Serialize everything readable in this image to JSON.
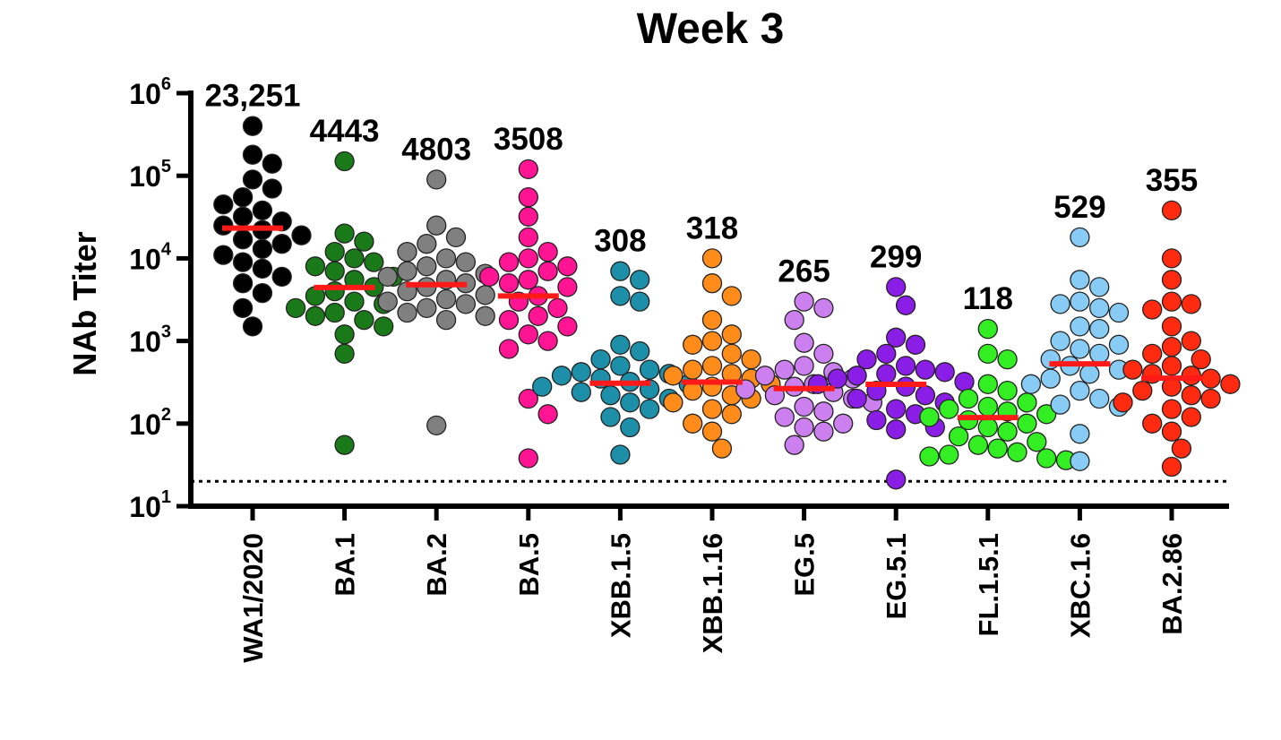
{
  "chart_data": {
    "type": "scatter",
    "title": "Week 3",
    "xlabel": "",
    "ylabel": "NAb Titer",
    "yscale": "log",
    "ylim": [
      10,
      1000000
    ],
    "yticks": [
      {
        "base": "10",
        "exp": "1"
      },
      {
        "base": "10",
        "exp": "2"
      },
      {
        "base": "10",
        "exp": "3"
      },
      {
        "base": "10",
        "exp": "4"
      },
      {
        "base": "10",
        "exp": "5"
      },
      {
        "base": "10",
        "exp": "6"
      }
    ],
    "limit_of_detection": 20,
    "categories": [
      "WA1/2020",
      "BA.1",
      "BA.2",
      "BA.5",
      "XBB.1.5",
      "XBB.1.16",
      "EG.5",
      "EG.5.1",
      "FL.1.5.1",
      "XBC.1.6",
      "BA.2.86"
    ],
    "series": [
      {
        "name": "WA1/2020",
        "color": "#000000",
        "gmt": 23251,
        "gmt_label": "23,251",
        "values": [
          400000,
          180000,
          140000,
          90000,
          70000,
          55000,
          45000,
          38000,
          32000,
          28000,
          25000,
          22000,
          19000,
          17000,
          15000,
          13000,
          11000,
          9000,
          7500,
          6000,
          5000,
          3800,
          2500,
          1500
        ]
      },
      {
        "name": "BA.1",
        "color": "#1a7a1a",
        "gmt": 4443,
        "gmt_label": "4443",
        "values": [
          150000,
          20000,
          16000,
          12000,
          10000,
          9000,
          8000,
          7000,
          6000,
          5500,
          4500,
          4000,
          3500,
          3000,
          2800,
          2500,
          2200,
          2000,
          1800,
          1500,
          1200,
          700,
          55
        ]
      },
      {
        "name": "BA.2",
        "color": "#808080",
        "gmt": 4803,
        "gmt_label": "4803",
        "values": [
          90000,
          25000,
          18000,
          15000,
          12000,
          10000,
          9000,
          8000,
          7000,
          6500,
          6000,
          5500,
          5000,
          4500,
          4000,
          3600,
          3200,
          3000,
          2800,
          2500,
          2200,
          2000,
          1800,
          95
        ]
      },
      {
        "name": "BA.5",
        "color": "#ff1493",
        "gmt": 3508,
        "gmt_label": "3508",
        "values": [
          120000,
          55000,
          32000,
          18000,
          12000,
          10000,
          9000,
          8000,
          7000,
          6000,
          5500,
          5000,
          4500,
          3500,
          3000,
          2500,
          2000,
          1800,
          1500,
          1200,
          1000,
          800,
          200,
          130,
          38
        ]
      },
      {
        "name": "XBB.1.5",
        "color": "#1e8fa8",
        "gmt": 308,
        "gmt_label": "308",
        "values": [
          7000,
          5500,
          3500,
          3000,
          900,
          750,
          600,
          500,
          450,
          420,
          400,
          380,
          350,
          320,
          300,
          280,
          260,
          240,
          220,
          200,
          180,
          150,
          120,
          90,
          42
        ]
      },
      {
        "name": "XBB.1.16",
        "color": "#ff8c1a",
        "gmt": 318,
        "gmt_label": "318",
        "values": [
          10000,
          5000,
          3500,
          1800,
          1200,
          1000,
          900,
          700,
          600,
          500,
          450,
          400,
          380,
          350,
          300,
          280,
          250,
          220,
          200,
          180,
          150,
          130,
          100,
          80,
          50
        ]
      },
      {
        "name": "EG.5",
        "color": "#cc80f0",
        "gmt": 265,
        "gmt_label": "265",
        "values": [
          3000,
          2500,
          1800,
          950,
          700,
          500,
          450,
          420,
          380,
          350,
          300,
          280,
          260,
          240,
          220,
          200,
          180,
          160,
          140,
          120,
          100,
          90,
          80,
          55
        ]
      },
      {
        "name": "EG.5.1",
        "color": "#8a1ee6",
        "gmt": 299,
        "gmt_label": "299",
        "values": [
          4500,
          2700,
          1100,
          900,
          700,
          600,
          500,
          450,
          420,
          400,
          380,
          350,
          320,
          300,
          280,
          250,
          220,
          200,
          180,
          150,
          130,
          110,
          90,
          85,
          21
        ]
      },
      {
        "name": "FL.1.5.1",
        "color": "#33ee22",
        "gmt": 118,
        "gmt_label": "118",
        "values": [
          1400,
          700,
          600,
          300,
          250,
          200,
          180,
          160,
          150,
          140,
          130,
          120,
          110,
          100,
          90,
          80,
          70,
          60,
          55,
          50,
          45,
          42,
          40,
          38,
          36
        ]
      },
      {
        "name": "XBC.1.6",
        "color": "#88ccf5",
        "gmt": 529,
        "gmt_label": "529",
        "values": [
          18000,
          5500,
          4500,
          3000,
          2800,
          2500,
          2200,
          1500,
          1400,
          1000,
          900,
          800,
          700,
          600,
          500,
          450,
          400,
          350,
          300,
          250,
          200,
          170,
          160,
          75,
          35
        ]
      },
      {
        "name": "BA.2.86",
        "color": "#ff2a10",
        "gmt": 355,
        "gmt_label": "355",
        "values": [
          38000,
          10000,
          5500,
          3000,
          2800,
          2400,
          1500,
          1000,
          850,
          700,
          600,
          500,
          450,
          400,
          380,
          350,
          300,
          280,
          250,
          220,
          200,
          180,
          150,
          120,
          100,
          80,
          50,
          30
        ]
      }
    ]
  }
}
